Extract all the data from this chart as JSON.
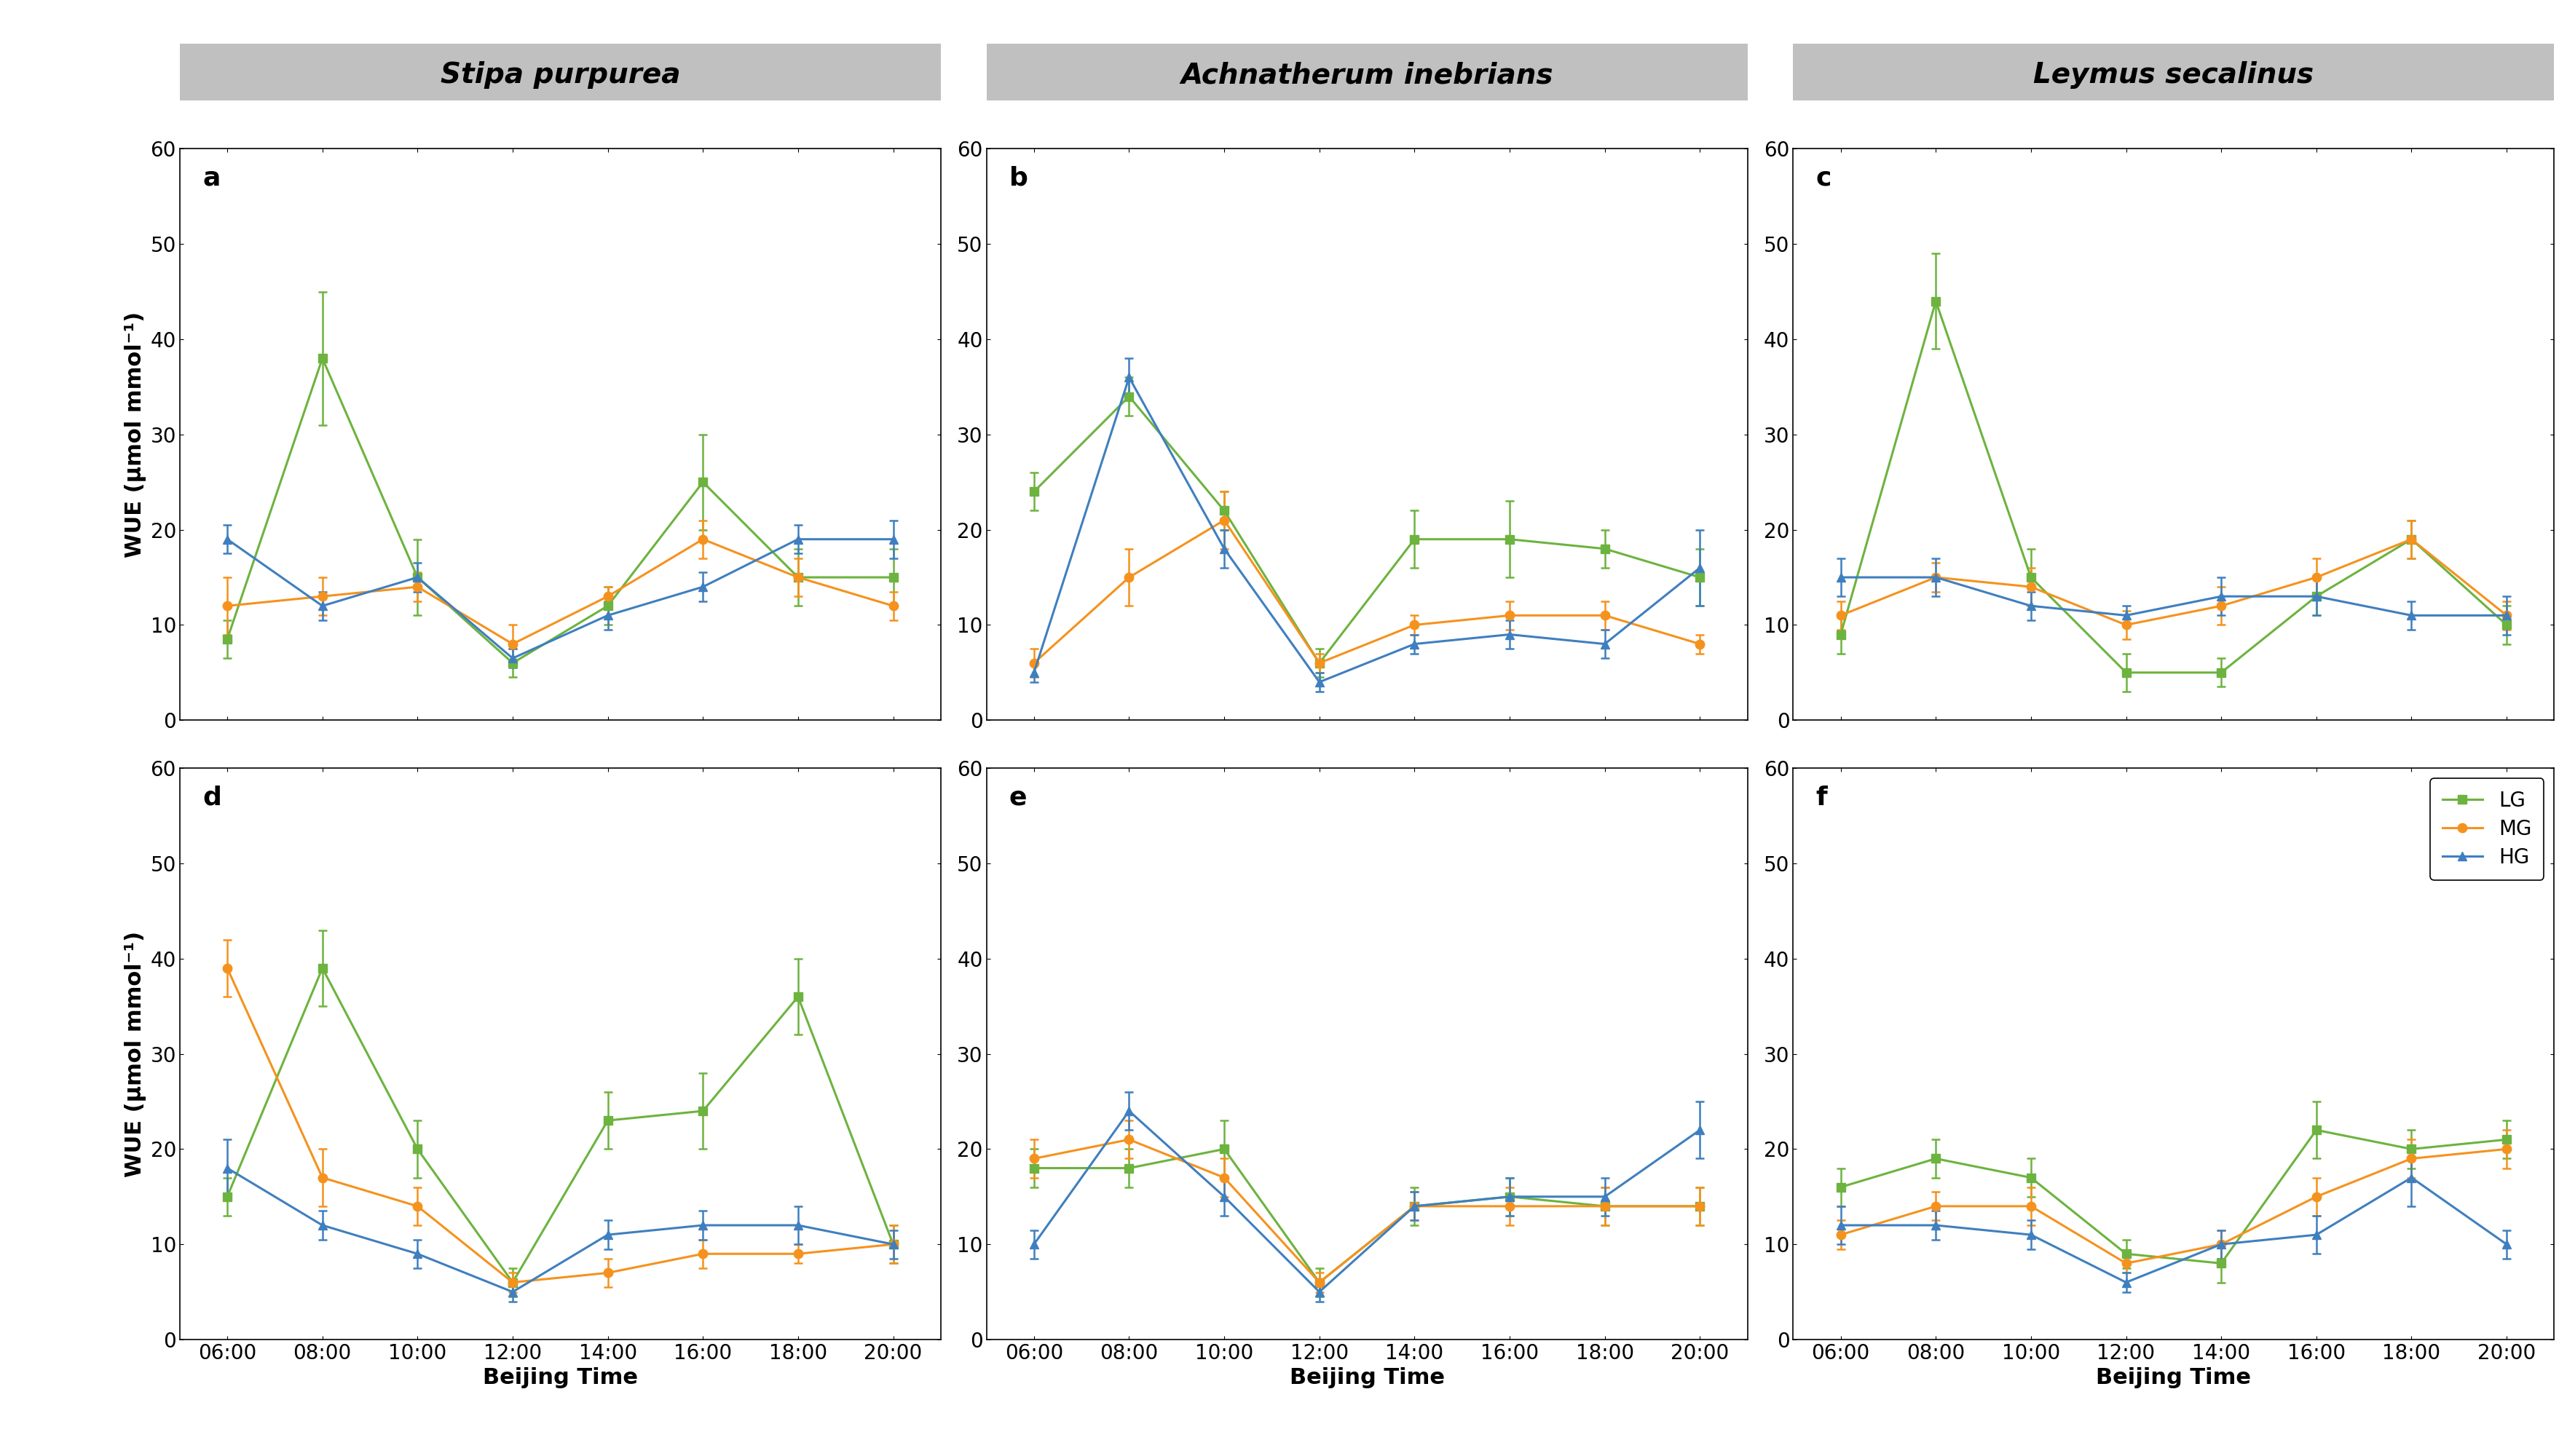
{
  "x_labels": [
    "06:00",
    "08:00",
    "10:00",
    "12:00",
    "14:00",
    "16:00",
    "18:00",
    "20:00"
  ],
  "col_titles": [
    "Stipa purpurea",
    "Achnatherum inebrians",
    "Leymus secalinus"
  ],
  "panel_labels": [
    "a",
    "b",
    "c",
    "d",
    "e",
    "f"
  ],
  "ylabel": "WUE (μmol mmol⁻¹)",
  "xlabel": "Beijing Time",
  "ylim": [
    0,
    60
  ],
  "yticks": [
    0,
    10,
    20,
    30,
    40,
    50,
    60
  ],
  "colors": {
    "LG": "#6db33f",
    "MG": "#f5921e",
    "HG": "#3f7fbf"
  },
  "legend_labels": [
    "LG",
    "MG",
    "HG"
  ],
  "panels": {
    "a": {
      "LG": {
        "y": [
          8.5,
          38,
          15,
          6,
          12,
          25,
          15,
          15
        ],
        "yerr": [
          2,
          7,
          4,
          1.5,
          2,
          5,
          3,
          3
        ]
      },
      "MG": {
        "y": [
          12,
          13,
          14,
          8,
          13,
          19,
          15,
          12
        ],
        "yerr": [
          3,
          2,
          1.5,
          2,
          1,
          2,
          2,
          1.5
        ]
      },
      "HG": {
        "y": [
          19,
          12,
          15,
          6.5,
          11,
          14,
          19,
          19
        ],
        "yerr": [
          1.5,
          1.5,
          1.5,
          1,
          1.5,
          1.5,
          1.5,
          2
        ]
      }
    },
    "b": {
      "LG": {
        "y": [
          24,
          34,
          22,
          6,
          19,
          19,
          18,
          15
        ],
        "yerr": [
          2,
          2,
          2,
          1.5,
          3,
          4,
          2,
          3
        ]
      },
      "MG": {
        "y": [
          6,
          15,
          21,
          6,
          10,
          11,
          11,
          8
        ],
        "yerr": [
          1.5,
          3,
          3,
          1,
          1,
          1.5,
          1.5,
          1
        ]
      },
      "HG": {
        "y": [
          5,
          36,
          18,
          4,
          8,
          9,
          8,
          16
        ],
        "yerr": [
          1,
          2,
          2,
          1,
          1,
          1.5,
          1.5,
          4
        ]
      }
    },
    "c": {
      "LG": {
        "y": [
          9,
          44,
          15,
          5,
          5,
          13,
          19,
          10
        ],
        "yerr": [
          2,
          5,
          3,
          2,
          1.5,
          2,
          2,
          2
        ]
      },
      "MG": {
        "y": [
          11,
          15,
          14,
          10,
          12,
          15,
          19,
          11
        ],
        "yerr": [
          1.5,
          1.5,
          2,
          1.5,
          2,
          2,
          2,
          1.5
        ]
      },
      "HG": {
        "y": [
          15,
          15,
          12,
          11,
          13,
          13,
          11,
          11
        ],
        "yerr": [
          2,
          2,
          1.5,
          1,
          2,
          2,
          1.5,
          2
        ]
      }
    },
    "d": {
      "LG": {
        "y": [
          15,
          39,
          20,
          6,
          23,
          24,
          36,
          10
        ],
        "yerr": [
          2,
          4,
          3,
          1.5,
          3,
          4,
          4,
          2
        ]
      },
      "MG": {
        "y": [
          39,
          17,
          14,
          6,
          7,
          9,
          9,
          10
        ],
        "yerr": [
          3,
          3,
          2,
          1,
          1.5,
          1.5,
          1,
          2
        ]
      },
      "HG": {
        "y": [
          18,
          12,
          9,
          5,
          11,
          12,
          12,
          10
        ],
        "yerr": [
          3,
          1.5,
          1.5,
          1,
          1.5,
          1.5,
          2,
          1.5
        ]
      }
    },
    "e": {
      "LG": {
        "y": [
          18,
          18,
          20,
          6,
          14,
          15,
          14,
          14
        ],
        "yerr": [
          2,
          2,
          3,
          1.5,
          2,
          2,
          2,
          2
        ]
      },
      "MG": {
        "y": [
          19,
          21,
          17,
          6,
          14,
          14,
          14,
          14
        ],
        "yerr": [
          2,
          2,
          2,
          1,
          1.5,
          2,
          2,
          2
        ]
      },
      "HG": {
        "y": [
          10,
          24,
          15,
          5,
          14,
          15,
          15,
          22
        ],
        "yerr": [
          1.5,
          2,
          2,
          1,
          1.5,
          2,
          2,
          3
        ]
      }
    },
    "f": {
      "LG": {
        "y": [
          16,
          19,
          17,
          9,
          8,
          22,
          20,
          21
        ],
        "yerr": [
          2,
          2,
          2,
          1.5,
          2,
          3,
          2,
          2
        ]
      },
      "MG": {
        "y": [
          11,
          14,
          14,
          8,
          10,
          15,
          19,
          20
        ],
        "yerr": [
          1.5,
          1.5,
          2,
          1,
          1.5,
          2,
          2,
          2
        ]
      },
      "HG": {
        "y": [
          12,
          12,
          11,
          6,
          10,
          11,
          17,
          10
        ],
        "yerr": [
          2,
          1.5,
          1.5,
          1,
          1.5,
          2,
          3,
          1.5
        ]
      }
    }
  },
  "header_bg": "#c0c0c0",
  "header_fontsize": 28,
  "panel_label_fontsize": 26,
  "tick_fontsize": 20,
  "axis_label_fontsize": 22,
  "legend_fontsize": 20,
  "line_width": 2.2,
  "marker_size": 9,
  "cap_size": 4,
  "elinewidth": 1.8
}
